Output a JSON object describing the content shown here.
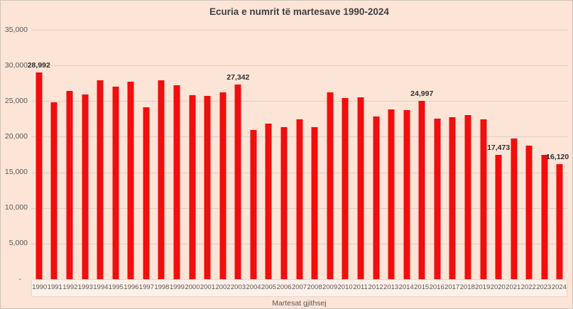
{
  "chart": {
    "colors": {
      "bar": "#f10e0e",
      "background": "#fce4d6",
      "gridline": "#ddd1c7",
      "axis_text": "#595959",
      "title_text": "#404040",
      "data_label_text": "#303030",
      "chart_border": "#cfc3b9",
      "strip_fill": "rgba(255,255,255,0.45)",
      "strip_border": "#e8d8ca"
    }
  },
  "chart_data": {
    "type": "bar",
    "title": "Ecuria e numrit të martesave 1990-2024",
    "xlabel": "Martesat gjithsej",
    "ylabel": "",
    "ylim": [
      0,
      35000
    ],
    "ytick_interval": 5000,
    "grid": true,
    "legend": false,
    "categories": [
      "1990",
      "1991",
      "1992",
      "1993",
      "1994",
      "1995",
      "1996",
      "1997",
      "1998",
      "1999",
      "2000",
      "2001",
      "2002",
      "2003",
      "2004",
      "2005",
      "2006",
      "2007",
      "2008",
      "2009",
      "2010",
      "2011",
      "2012",
      "2013",
      "2014",
      "2015",
      "2016",
      "2017",
      "2018",
      "2019",
      "2020",
      "2021",
      "2022",
      "2023",
      "2024"
    ],
    "values": [
      28992,
      24850,
      26400,
      25950,
      27950,
      27000,
      27700,
      24100,
      27900,
      27250,
      25800,
      25700,
      26250,
      27342,
      20950,
      21850,
      21300,
      22450,
      21350,
      26200,
      25450,
      25550,
      22800,
      23800,
      23700,
      24997,
      22550,
      22700,
      23050,
      22400,
      17473,
      19750,
      18770,
      17460,
      16120
    ],
    "data_labels": {
      "1990": "28,992",
      "2003": "27,342",
      "2015": "24,997",
      "2020": "17,473",
      "2024": "16,120"
    },
    "yticks": [
      {
        "label": "35,000",
        "value": 35000
      },
      {
        "label": "30,000",
        "value": 30000
      },
      {
        "label": "25,000",
        "value": 25000
      },
      {
        "label": "20,000",
        "value": 20000
      },
      {
        "label": "15,000",
        "value": 15000
      },
      {
        "label": "10,000",
        "value": 10000
      },
      {
        "label": "5,000",
        "value": 5000
      },
      {
        "label": "-",
        "value": 0
      }
    ]
  }
}
